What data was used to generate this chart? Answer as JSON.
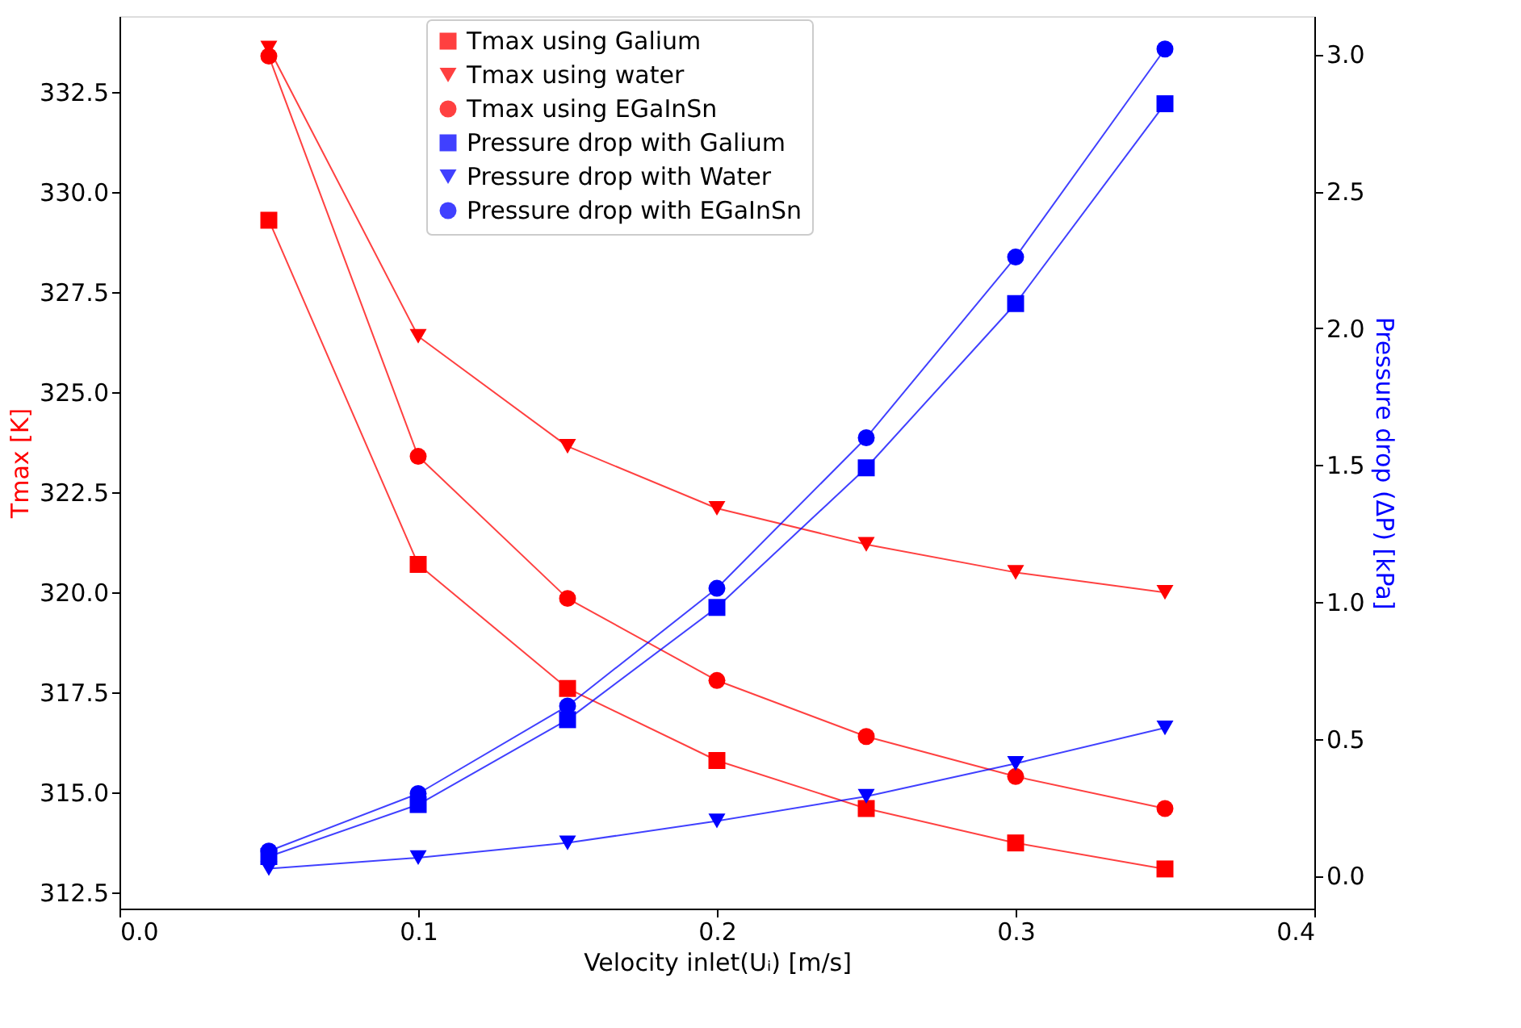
{
  "chart_data": {
    "type": "line",
    "xlabel": "Velocity inlet(Uᵢ) [m/s]",
    "ylabel": "Tmax [K]",
    "y2label": "Pressure drop (ΔP) [kPa]",
    "x": [
      0.05,
      0.1,
      0.15,
      0.2,
      0.25,
      0.3,
      0.35
    ],
    "xlim": [
      0.0,
      0.4
    ],
    "xticks": [
      {
        "value": 0.0,
        "label": "0.0"
      },
      0.1,
      0.2,
      0.3,
      0.4
    ],
    "ylim": [
      312.1,
      334.4
    ],
    "yticks": [
      {
        "value": 312.5,
        "label": "312.5"
      },
      {
        "value": 315,
        "label": "315.0"
      },
      {
        "value": 317.5,
        "label": "317.5"
      },
      {
        "value": 320,
        "label": "320.0"
      },
      {
        "value": 322.5,
        "label": "322.5"
      },
      {
        "value": 325,
        "label": "325.0"
      },
      {
        "value": 327.5,
        "label": "327.5"
      },
      {
        "value": 330,
        "label": "330.0"
      },
      {
        "value": 332.5,
        "label": "332.5"
      }
    ],
    "y2lim": [
      -0.12,
      3.14
    ],
    "y2ticks": [
      {
        "value": 0,
        "label": "0.0"
      },
      {
        "value": 0.5,
        "label": "0.5"
      },
      {
        "value": 1,
        "label": "1.0"
      },
      {
        "value": 1.5,
        "label": "1.5"
      },
      {
        "value": 2,
        "label": "2.0"
      },
      {
        "value": 2.5,
        "label": "2.5"
      },
      {
        "value": 3,
        "label": "3.0"
      }
    ],
    "grid": false,
    "legend": "top",
    "line_style": "solid",
    "series": [
      {
        "name": "Tmax using Galium",
        "color": "#ff0000",
        "marker": "square",
        "values": [
          329.3,
          320.7,
          317.6,
          315.8,
          314.6,
          313.74,
          313.09
        ]
      },
      {
        "name": "Tmax using water",
        "color": "#ff0000",
        "marker": "triangle",
        "values": [
          333.6,
          326.4,
          323.65,
          322.1,
          321.2,
          320.5,
          320.0
        ]
      },
      {
        "name": "Tmax using EGaInSn",
        "color": "#ff0000",
        "marker": "circle",
        "values": [
          333.4,
          323.4,
          319.85,
          317.8,
          316.4,
          315.4,
          314.6
        ]
      },
      {
        "name": "Pressure drop with Galium",
        "color": "#0000ff",
        "marker": "square",
        "axis": "y2",
        "values": [
          0.07,
          0.26,
          0.57,
          0.98,
          1.49,
          2.09,
          2.82
        ]
      },
      {
        "name": "Pressure drop with Water",
        "color": "#0000ff",
        "marker": "triangle",
        "axis": "y2",
        "values": [
          0.026,
          0.066,
          0.12,
          0.2,
          0.29,
          0.41,
          0.54
        ]
      },
      {
        "name": "Pressure drop with EGaInSn",
        "color": "#0000ff",
        "marker": "circle",
        "axis": "y2",
        "values": [
          0.09,
          0.3,
          0.62,
          1.05,
          1.6,
          2.26,
          3.02
        ]
      }
    ]
  }
}
